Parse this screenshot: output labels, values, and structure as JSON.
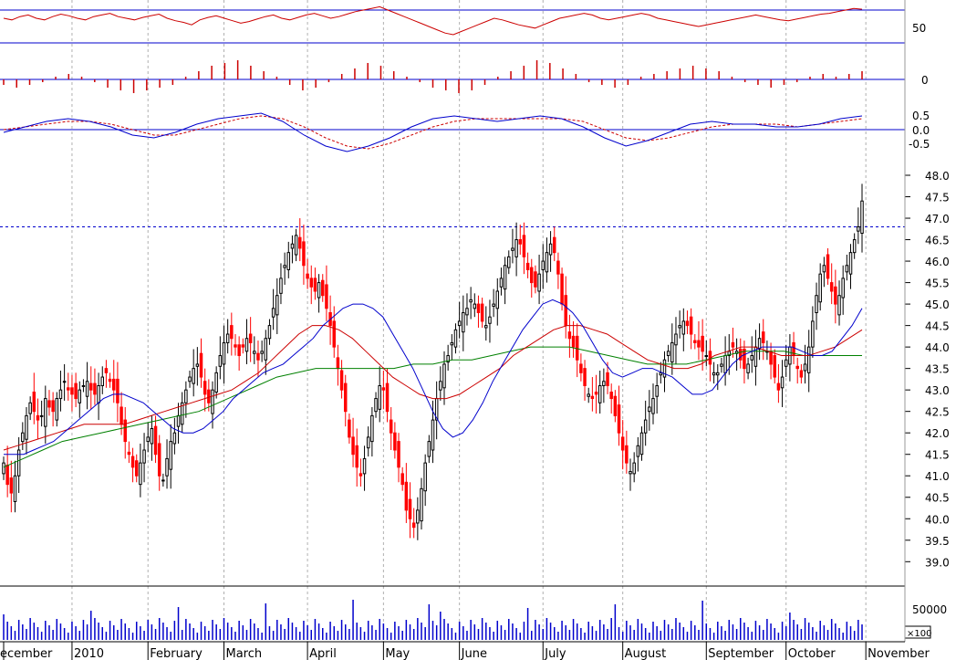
{
  "chart_data": {
    "type": "candlestick",
    "title": "",
    "colors": {
      "up": "#000000",
      "down": "#ff0000",
      "ma_fast": "#0000cc",
      "ma_mid": "#cc0000",
      "ma_slow": "#008000",
      "rsi": "#cc0000",
      "macd": "#0000cc",
      "signal": "#cc0000",
      "volume": "#0000cc",
      "reference_line": "#0000cc"
    },
    "x_axis": {
      "months": [
        {
          "label": "ecember",
          "index": 0
        },
        {
          "label": "2010",
          "index": 18
        },
        {
          "label": "February",
          "index": 38
        },
        {
          "label": "March",
          "index": 58
        },
        {
          "label": "April",
          "index": 80
        },
        {
          "label": "May",
          "index": 100
        },
        {
          "label": "June",
          "index": 120
        },
        {
          "label": "July",
          "index": 142
        },
        {
          "label": "August",
          "index": 163
        },
        {
          "label": "September",
          "index": 185
        },
        {
          "label": "October",
          "index": 206
        },
        {
          "label": "November",
          "index": 227
        }
      ]
    },
    "price_panel": {
      "ylim": [
        38.5,
        48.2
      ],
      "ticks": [
        "48.0",
        "47.5",
        "47.0",
        "46.5",
        "46.0",
        "45.5",
        "45.0",
        "44.5",
        "44.0",
        "43.5",
        "43.0",
        "42.5",
        "42.0",
        "41.5",
        "41.0",
        "40.5",
        "40.0",
        "39.5",
        "39.0"
      ],
      "resistance_level": 46.8,
      "closes": [
        41.3,
        40.8,
        40.6,
        41.0,
        41.6,
        42.0,
        42.4,
        42.7,
        42.5,
        42.3,
        42.4,
        42.8,
        42.6,
        42.5,
        42.8,
        43.0,
        43.2,
        43.0,
        42.9,
        42.8,
        43.0,
        43.1,
        43.2,
        43.0,
        42.9,
        43.1,
        43.3,
        43.4,
        43.2,
        43.0,
        42.7,
        42.2,
        41.8,
        41.5,
        41.2,
        41.0,
        41.3,
        41.6,
        41.9,
        42.1,
        41.5,
        41.0,
        40.9,
        41.4,
        41.8,
        42.0,
        42.4,
        42.7,
        43.0,
        43.3,
        43.5,
        43.6,
        43.3,
        42.9,
        42.7,
        43.0,
        43.4,
        43.8,
        44.1,
        44.3,
        44.2,
        44.0,
        43.8,
        44.0,
        44.2,
        44.1,
        43.9,
        43.7,
        43.9,
        44.2,
        44.5,
        44.9,
        45.2,
        45.6,
        45.9,
        46.2,
        46.4,
        46.6,
        46.3,
        45.9,
        45.6,
        45.4,
        45.3,
        45.5,
        45.2,
        44.9,
        44.5,
        44.0,
        43.5,
        43.0,
        42.5,
        41.9,
        41.5,
        41.2,
        41.0,
        41.4,
        41.9,
        42.4,
        42.8,
        43.1,
        43.0,
        42.5,
        42.0,
        41.6,
        41.2,
        40.8,
        40.2,
        40.0,
        39.8,
        40.2,
        40.7,
        41.3,
        41.8,
        42.3,
        42.8,
        43.2,
        43.6,
        43.8,
        44.1,
        44.4,
        44.6,
        44.8,
        44.9,
        45.1,
        45.0,
        44.8,
        44.6,
        44.5,
        44.7,
        45.0,
        45.3,
        45.6,
        45.9,
        46.1,
        46.3,
        46.5,
        46.4,
        46.1,
        45.8,
        45.5,
        45.4,
        45.7,
        46.0,
        46.2,
        46.4,
        46.2,
        45.7,
        45.0,
        44.5,
        44.2,
        44.0,
        43.7,
        43.4,
        43.1,
        42.9,
        42.8,
        42.9,
        43.1,
        43.2,
        43.1,
        42.8,
        42.4,
        42.0,
        41.6,
        41.3,
        41.1,
        41.3,
        41.7,
        42.0,
        42.3,
        42.6,
        42.8,
        43.1,
        43.4,
        43.7,
        43.9,
        44.1,
        44.3,
        44.5,
        44.6,
        44.5,
        44.3,
        44.1,
        44.0,
        43.9,
        43.8,
        43.6,
        43.4,
        43.4,
        43.6,
        43.8,
        43.9,
        44.0,
        43.9,
        43.7,
        43.5,
        43.6,
        43.8,
        44.0,
        44.2,
        44.1,
        43.9,
        43.6,
        43.3,
        43.0,
        43.3,
        43.7,
        44.0,
        43.8,
        43.5,
        43.3,
        43.6,
        44.0,
        44.6,
        45.2,
        45.7,
        45.9,
        45.6,
        45.3,
        45.0,
        45.2,
        45.6,
        45.9,
        46.2,
        46.5,
        46.8,
        47.4
      ],
      "ma_fast": [
        41.5,
        41.5,
        41.5,
        41.6,
        41.7,
        41.8,
        42.0,
        42.2,
        42.4,
        42.6,
        42.8,
        42.9,
        42.9,
        42.8,
        42.7,
        42.5,
        42.3,
        42.1,
        42.0,
        42.0,
        42.1,
        42.3,
        42.5,
        42.8,
        43.0,
        43.2,
        43.4,
        43.5,
        43.6,
        43.8,
        44.0,
        44.2,
        44.5,
        44.7,
        44.9,
        45.0,
        45.0,
        44.9,
        44.7,
        44.3,
        43.9,
        43.5,
        43.0,
        42.5,
        42.1,
        41.9,
        42.0,
        42.3,
        42.7,
        43.2,
        43.6,
        44.0,
        44.4,
        44.7,
        45.0,
        45.1,
        45.0,
        44.8,
        44.5,
        44.1,
        43.7,
        43.4,
        43.3,
        43.4,
        43.5,
        43.5,
        43.4,
        43.3,
        43.1,
        42.9,
        42.9,
        43.0,
        43.3,
        43.6,
        43.8,
        43.9,
        44.0,
        44.0,
        44.0,
        44.0,
        43.9,
        43.8,
        43.8,
        43.9,
        44.2,
        44.5,
        44.9
      ],
      "ma_mid": [
        41.6,
        41.7,
        41.8,
        41.9,
        42.0,
        42.1,
        42.2,
        42.2,
        42.2,
        42.2,
        42.3,
        42.4,
        42.5,
        42.6,
        42.7,
        42.8,
        42.9,
        43.0,
        43.2,
        43.4,
        43.7,
        44.0,
        44.3,
        44.5,
        44.5,
        44.4,
        44.2,
        43.9,
        43.6,
        43.3,
        43.1,
        42.9,
        42.8,
        42.8,
        42.9,
        43.1,
        43.3,
        43.5,
        43.8,
        44.0,
        44.2,
        44.4,
        44.5,
        44.5,
        44.4,
        44.3,
        44.1,
        43.9,
        43.7,
        43.6,
        43.5,
        43.5,
        43.6,
        43.8,
        43.9,
        44.0,
        44.0,
        43.9,
        43.8,
        43.8,
        43.8,
        43.9,
        44.0,
        44.2,
        44.4
      ],
      "ma_slow": [
        41.2,
        41.4,
        41.6,
        41.8,
        41.9,
        42.0,
        42.1,
        42.2,
        42.3,
        42.4,
        42.5,
        42.7,
        42.9,
        43.1,
        43.3,
        43.4,
        43.5,
        43.5,
        43.5,
        43.5,
        43.5,
        43.6,
        43.6,
        43.7,
        43.7,
        43.8,
        43.9,
        44.0,
        44.0,
        44.0,
        43.9,
        43.8,
        43.7,
        43.6,
        43.6,
        43.6,
        43.7,
        43.8,
        43.9,
        43.9,
        43.9,
        43.8,
        43.8,
        43.8,
        43.8
      ]
    },
    "rsi_panel": {
      "tick": "50",
      "upper_level": 70,
      "lower_level": 30,
      "values": [
        60,
        58,
        62,
        64,
        60,
        58,
        62,
        65,
        63,
        60,
        58,
        62,
        64,
        66,
        62,
        60,
        58,
        61,
        63,
        65,
        60,
        57,
        55,
        52,
        58,
        61,
        63,
        60,
        57,
        54,
        56,
        59,
        62,
        64,
        60,
        58,
        61,
        64,
        66,
        63,
        60,
        62,
        65,
        68,
        70,
        72,
        74,
        70,
        66,
        62,
        58,
        54,
        50,
        46,
        42,
        40,
        44,
        48,
        52,
        56,
        60,
        58,
        55,
        52,
        50,
        48,
        52,
        56,
        60,
        62,
        64,
        66,
        64,
        60,
        58,
        60,
        62,
        64,
        66,
        64,
        60,
        58,
        56,
        54,
        52,
        50,
        52,
        54,
        56,
        58,
        60,
        62,
        64,
        62,
        60,
        58,
        57,
        59,
        61,
        63,
        65,
        66,
        68,
        70,
        72,
        71
      ]
    },
    "histogram_panel": {
      "tick": "0",
      "values": [
        -2,
        -3,
        -2,
        -1,
        1,
        2,
        1,
        -1,
        -3,
        -4,
        -5,
        -4,
        -3,
        -2,
        1,
        3,
        5,
        6,
        7,
        5,
        3,
        1,
        -2,
        -4,
        -3,
        -1,
        2,
        4,
        6,
        5,
        3,
        1,
        -1,
        -3,
        -4,
        -5,
        -4,
        -2,
        1,
        3,
        5,
        7,
        6,
        4,
        2,
        -1,
        -2,
        -3,
        -2,
        1,
        2,
        3,
        4,
        5,
        4,
        3,
        1,
        -1,
        -2,
        -3,
        -2,
        -1,
        1,
        2,
        1,
        2,
        3
      ]
    },
    "macd_panel": {
      "ticks": [
        "0.5",
        "0.0",
        "-0.5"
      ],
      "macd": [
        -0.1,
        0.1,
        0.3,
        0.4,
        0.3,
        0.1,
        -0.2,
        -0.3,
        -0.1,
        0.2,
        0.4,
        0.5,
        0.6,
        0.3,
        -0.2,
        -0.6,
        -0.8,
        -0.6,
        -0.3,
        0.1,
        0.4,
        0.5,
        0.4,
        0.3,
        0.4,
        0.5,
        0.4,
        0.1,
        -0.3,
        -0.6,
        -0.4,
        -0.1,
        0.2,
        0.3,
        0.2,
        0.2,
        0.1,
        0.1,
        0.2,
        0.4,
        0.5
      ],
      "signal": [
        0.0,
        0.1,
        0.2,
        0.3,
        0.3,
        0.2,
        0.0,
        -0.2,
        -0.2,
        0.0,
        0.2,
        0.4,
        0.5,
        0.4,
        0.1,
        -0.3,
        -0.6,
        -0.7,
        -0.5,
        -0.2,
        0.1,
        0.3,
        0.4,
        0.4,
        0.4,
        0.4,
        0.4,
        0.3,
        0.0,
        -0.3,
        -0.4,
        -0.3,
        -0.1,
        0.1,
        0.2,
        0.2,
        0.2,
        0.1,
        0.2,
        0.3,
        0.4
      ]
    },
    "volume_panel": {
      "tick": "50000",
      "unit": "×100"
    }
  }
}
